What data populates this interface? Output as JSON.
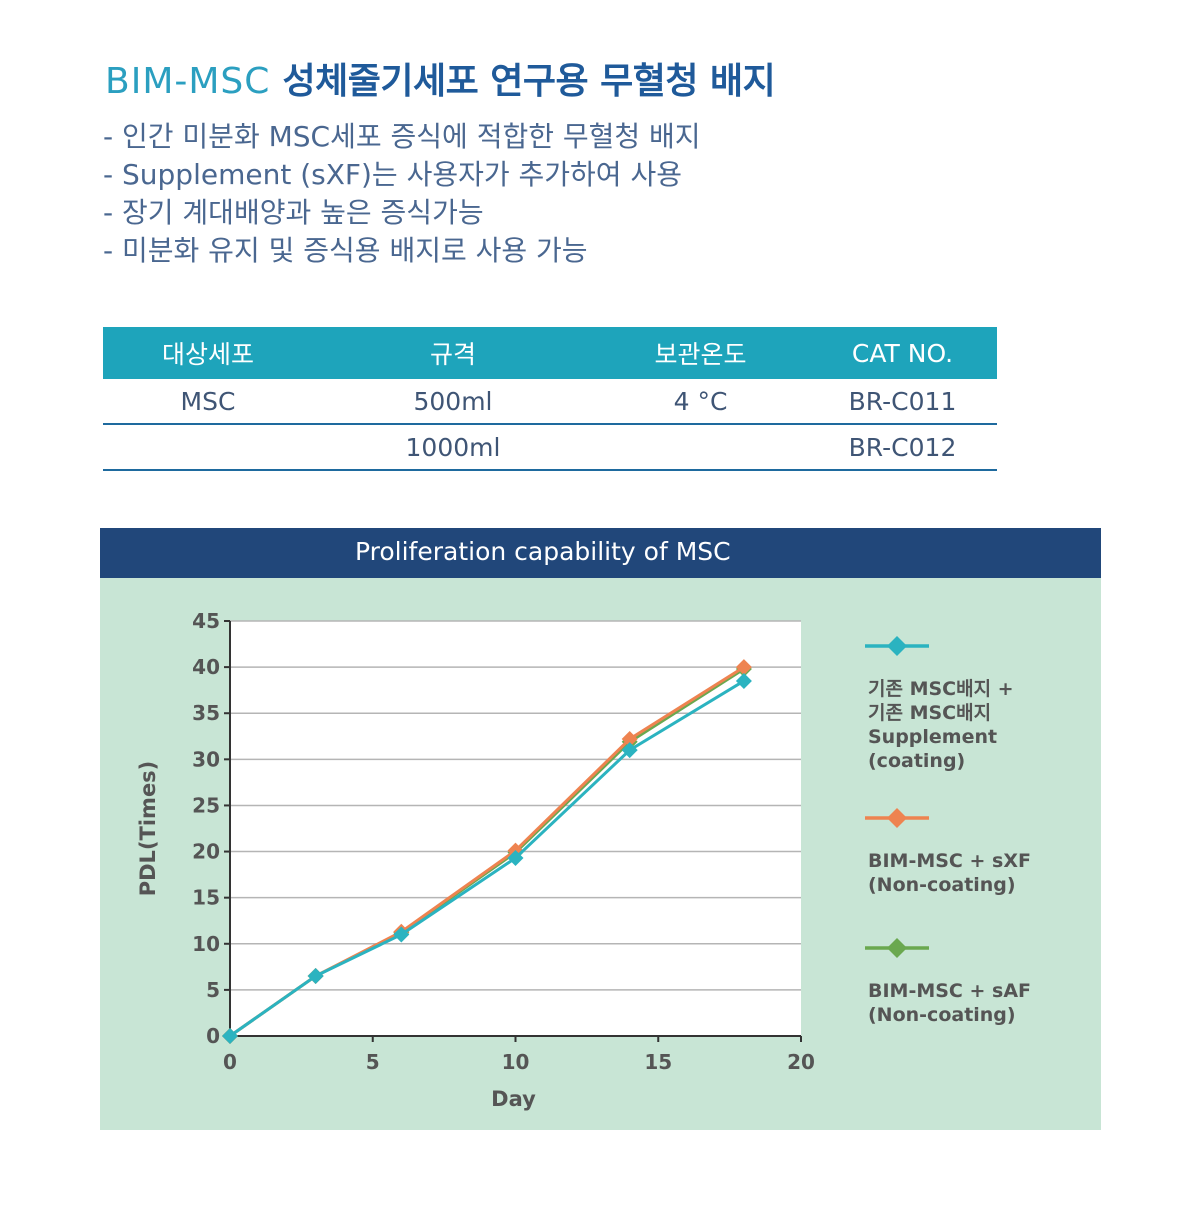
{
  "heading": {
    "brand": "BIM-MSC",
    "title": "성체줄기세포 연구용 무혈청 배지"
  },
  "bullets": [
    "- 인간 미분화 MSC세포 증식에 적합한 무혈청 배지",
    "- Supplement (sXF)는 사용자가 추가하여 사용",
    "- 장기 계대배양과 높은 증식가능",
    "- 미분화 유지 및 증식용 배지로 사용 가능"
  ],
  "spec_table": {
    "headers": [
      "대상세포",
      "규격",
      "보관온도",
      "CAT NO."
    ],
    "rows": [
      [
        "MSC",
        "500ml",
        "4 °C",
        "BR-C011"
      ],
      [
        "",
        "1000ml",
        "",
        "BR-C012"
      ]
    ],
    "colors": {
      "header_bg": "#1ea4bb",
      "rule": "#1e6a9e"
    }
  },
  "chart_panel": {
    "header": "Proliferation capability of MSC",
    "colors": {
      "header_bg": "#21477a",
      "panel_bg": "#c8e5d5",
      "plot_bg": "#ffffff"
    }
  },
  "chart_data": {
    "type": "line",
    "title": "",
    "xlabel": "Day",
    "ylabel": "PDL(Times)",
    "xlim": [
      0,
      20
    ],
    "ylim": [
      0,
      45
    ],
    "xticks": [
      0,
      5,
      10,
      15,
      20
    ],
    "yticks": [
      0,
      5,
      10,
      15,
      20,
      25,
      30,
      35,
      40,
      45
    ],
    "grid": "horizontal",
    "legend_position": "right",
    "series": [
      {
        "name": "기존 MSC배지 + 기존 MSC배지 Supplement (coating)",
        "legend_lines": [
          "기존 MSC배지 +",
          "기존 MSC배지",
          "Supplement",
          "(coating)"
        ],
        "color": "#2bb3c0",
        "x": [
          0,
          3,
          6,
          10,
          14,
          18
        ],
        "y": [
          0,
          6.5,
          11,
          19.3,
          31,
          38.5
        ]
      },
      {
        "name": "BIM-MSC + sXF (Non-coating)",
        "legend_lines": [
          "BIM-MSC + sXF",
          "(Non-coating)"
        ],
        "color": "#ee8350",
        "x": [
          0,
          3,
          6,
          10,
          14,
          18
        ],
        "y": [
          0,
          6.5,
          11.3,
          20.1,
          32.2,
          40
        ]
      },
      {
        "name": "BIM-MSC + sAF (Non-coating)",
        "legend_lines": [
          "BIM-MSC + sAF",
          "(Non-coating)"
        ],
        "color": "#6aa84f",
        "x": [
          0,
          3,
          6,
          10,
          14,
          18
        ],
        "y": [
          0,
          6.5,
          11.2,
          19.9,
          31.9,
          39.8
        ]
      }
    ]
  }
}
